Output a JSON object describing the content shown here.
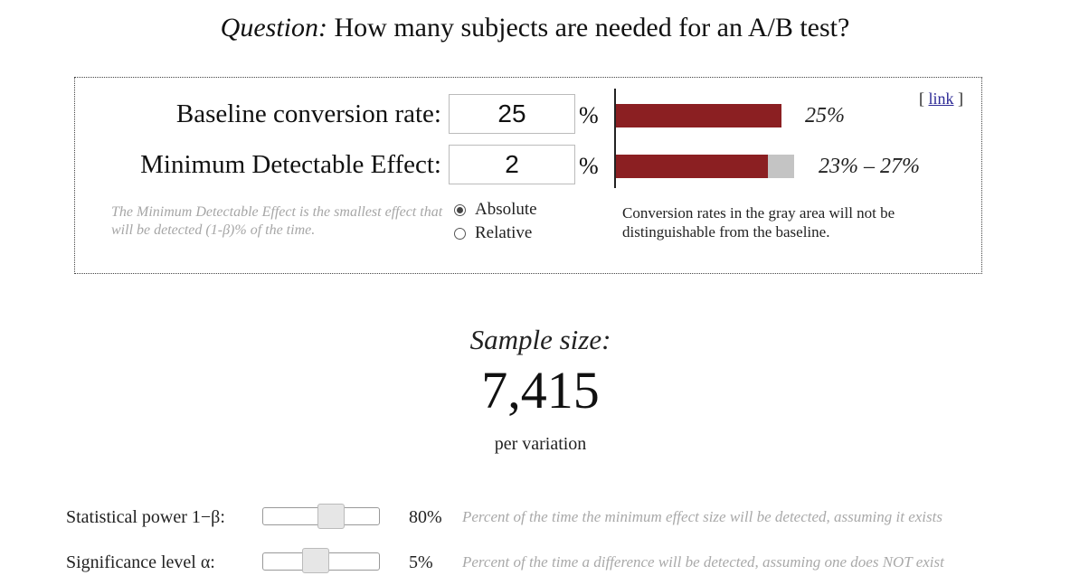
{
  "question": {
    "prefix": "Question:",
    "text": "How many subjects are needed for an A/B test?"
  },
  "link": {
    "open": "[",
    "label": "link",
    "close": "]"
  },
  "baseline": {
    "label": "Baseline conversion rate:",
    "value": "25",
    "unit": "%",
    "bar_fraction": 0.25,
    "bar_label": "25%"
  },
  "mde": {
    "label": "Minimum Detectable Effect:",
    "value": "2",
    "unit": "%",
    "range_low": 0.23,
    "range_high": 0.27,
    "bar_label": "23% – 27%",
    "hint": "The Minimum Detectable Effect is the smallest effect that will be detected (1-β)% of the time.",
    "options": [
      {
        "label": "Absolute",
        "selected": true
      },
      {
        "label": "Relative",
        "selected": false
      }
    ]
  },
  "gray_note": "Conversion rates in the gray area will not be distinguishable from the baseline.",
  "result": {
    "label": "Sample size:",
    "value": "7,415",
    "unit_text": "per variation"
  },
  "power": {
    "label": "Statistical power 1−β:",
    "value": "80%",
    "level": 0.8,
    "description": "Percent of the time the minimum effect size will be detected, assuming it exists"
  },
  "significance": {
    "label": "Significance level α:",
    "value": "5%",
    "level": 0.05,
    "description": "Percent of the time a difference will be detected, assuming one does NOT exist"
  },
  "colors": {
    "bar": "#8b1f22",
    "gray_area": "#c4c4c4",
    "link": "#2d2a96"
  }
}
